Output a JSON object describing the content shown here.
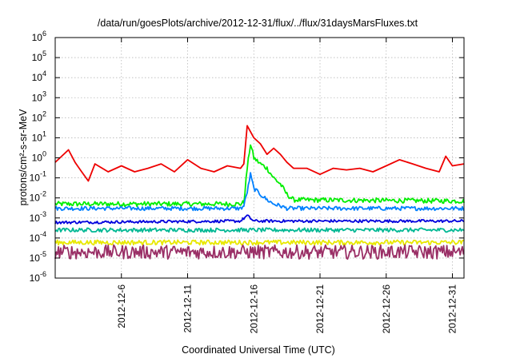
{
  "chart_data": {
    "type": "line",
    "title": "/data/run/goesPlots/archive/2012-12-31/flux/../flux/31daysMarsFluxes.txt",
    "ylabel": "protons/cm²-s-sr-MeV",
    "xlabel": "Coordinated Universal Time (UTC)",
    "y_scale": "log",
    "ylim": [
      1e-06,
      1000000
    ],
    "y_ticks": [
      {
        "value": 1e-06,
        "base": "10",
        "exp": "-6"
      },
      {
        "value": 1e-05,
        "base": "10",
        "exp": "-5"
      },
      {
        "value": 0.0001,
        "base": "10",
        "exp": "-4"
      },
      {
        "value": 0.001,
        "base": "10",
        "exp": "-3"
      },
      {
        "value": 0.01,
        "base": "10",
        "exp": "-2"
      },
      {
        "value": 0.1,
        "base": "10",
        "exp": "-1"
      },
      {
        "value": 1,
        "base": "10",
        "exp": "0"
      },
      {
        "value": 10,
        "base": "10",
        "exp": "1"
      },
      {
        "value": 100,
        "base": "10",
        "exp": "2"
      },
      {
        "value": 1000,
        "base": "10",
        "exp": "3"
      },
      {
        "value": 10000,
        "base": "10",
        "exp": "4"
      },
      {
        "value": 100000,
        "base": "10",
        "exp": "5"
      },
      {
        "value": 1000000,
        "base": "10",
        "exp": "6"
      }
    ],
    "xlim": [
      "2012-12-01T00:00",
      "2012-12-31T21:00"
    ],
    "x_ticks": [
      {
        "date": "2012-12-06",
        "label": "2012-12-6"
      },
      {
        "date": "2012-12-11",
        "label": "2012-12-11"
      },
      {
        "date": "2012-12-16",
        "label": "2012-12-16"
      },
      {
        "date": "2012-12-21",
        "label": "2012-12-21"
      },
      {
        "date": "2012-12-26",
        "label": "2012-12-26"
      },
      {
        "date": "2012-12-31",
        "label": "2012-12-31"
      }
    ],
    "grid": true,
    "legend": "none",
    "series": [
      {
        "color": "#ee0000",
        "x": [
          "2012-12-01T00:00",
          "2012-12-02T00:00",
          "2012-12-02T12:00",
          "2012-12-03T00:00",
          "2012-12-03T12:00",
          "2012-12-04T00:00",
          "2012-12-05T00:00",
          "2012-12-06T00:00",
          "2012-12-07T00:00",
          "2012-12-08T00:00",
          "2012-12-09T00:00",
          "2012-12-10T00:00",
          "2012-12-11T00:00",
          "2012-12-12T00:00",
          "2012-12-13T00:00",
          "2012-12-14T00:00",
          "2012-12-15T00:00",
          "2012-12-15T06:00",
          "2012-12-15T12:00",
          "2012-12-16T00:00",
          "2012-12-16T12:00",
          "2012-12-17T00:00",
          "2012-12-17T12:00",
          "2012-12-18T00:00",
          "2012-12-18T12:00",
          "2012-12-19T00:00",
          "2012-12-20T00:00",
          "2012-12-21T00:00",
          "2012-12-22T00:00",
          "2012-12-23T00:00",
          "2012-12-24T00:00",
          "2012-12-25T00:00",
          "2012-12-26T00:00",
          "2012-12-27T00:00",
          "2012-12-28T00:00",
          "2012-12-29T00:00",
          "2012-12-30T00:00",
          "2012-12-30T12:00",
          "2012-12-31T00:00",
          "2012-12-31T21:00"
        ],
        "y": [
          0.6,
          2.5,
          0.6,
          0.2,
          0.07,
          0.5,
          0.2,
          0.4,
          0.2,
          0.3,
          0.5,
          0.2,
          0.8,
          0.3,
          0.2,
          0.4,
          0.3,
          0.5,
          40,
          10,
          5,
          1.5,
          3,
          1.5,
          0.6,
          0.3,
          0.3,
          0.15,
          0.3,
          0.25,
          0.3,
          0.2,
          0.4,
          0.8,
          0.5,
          0.3,
          0.2,
          1.2,
          0.4,
          0.5
        ]
      },
      {
        "color": "#00ee00",
        "x": [
          "2012-12-01T00:00",
          "2012-12-15T00:00",
          "2012-12-15T06:00",
          "2012-12-15T12:00",
          "2012-12-15T18:00",
          "2012-12-16T00:00",
          "2012-12-16T12:00",
          "2012-12-17T00:00",
          "2012-12-17T12:00",
          "2012-12-18T00:00",
          "2012-12-18T12:00",
          "2012-12-19T00:00",
          "2012-12-31T21:00"
        ],
        "y": [
          0.005,
          0.005,
          0.006,
          0.3,
          5,
          1,
          0.5,
          0.3,
          0.1,
          0.05,
          0.015,
          0.008,
          0.007
        ]
      },
      {
        "color": "#0080ff",
        "x": [
          "2012-12-01T00:00",
          "2012-12-15T00:00",
          "2012-12-15T06:00",
          "2012-12-15T12:00",
          "2012-12-15T18:00",
          "2012-12-16T00:00",
          "2012-12-16T12:00",
          "2012-12-17T00:00",
          "2012-12-17T12:00",
          "2012-12-18T00:00",
          "2012-12-18T12:00",
          "2012-12-31T21:00"
        ],
        "y": [
          0.003,
          0.003,
          0.004,
          0.02,
          0.15,
          0.03,
          0.015,
          0.008,
          0.005,
          0.004,
          0.003,
          0.003
        ]
      },
      {
        "color": "#0000dd",
        "x": [
          "2012-12-01T00:00",
          "2012-12-15T00:00",
          "2012-12-15T12:00",
          "2012-12-16T00:00",
          "2012-12-31T21:00"
        ],
        "y": [
          0.0006,
          0.0007,
          0.0013,
          0.0007,
          0.0007
        ]
      },
      {
        "color": "#00b894",
        "x": [
          "2012-12-01T00:00",
          "2012-12-31T21:00"
        ],
        "y": [
          0.00025,
          0.00025
        ]
      },
      {
        "color": "#e8e800",
        "x": [
          "2012-12-01T00:00",
          "2012-12-31T21:00"
        ],
        "y": [
          6e-05,
          6e-05
        ]
      },
      {
        "color": "#9a2f66",
        "x": [
          "2012-12-01T00:00",
          "2012-12-31T21:00"
        ],
        "y": [
          2e-05,
          2e-05
        ]
      }
    ]
  }
}
